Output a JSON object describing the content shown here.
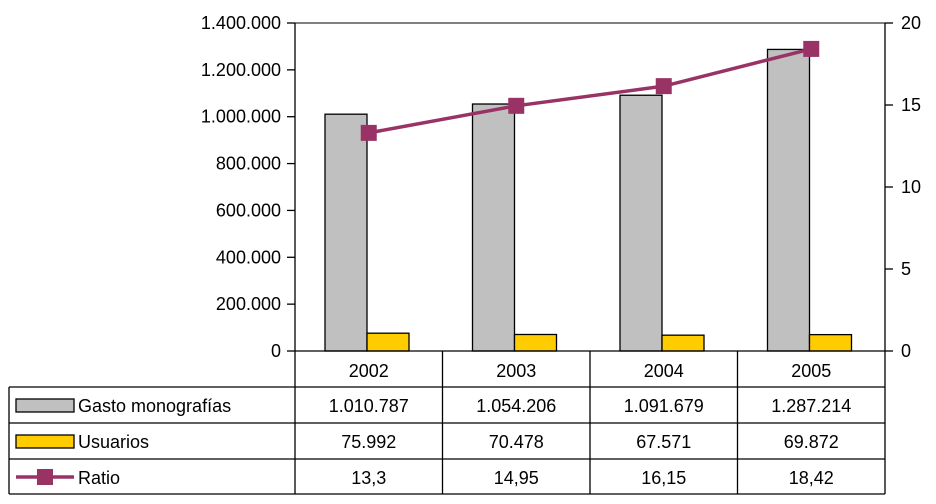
{
  "chart_data": {
    "type": "bar",
    "categories": [
      "2002",
      "2003",
      "2004",
      "2005"
    ],
    "series": [
      {
        "name": "Gasto monografías",
        "type": "bar",
        "axis": "left",
        "values": [
          1010787,
          1054206,
          1091679,
          1287214
        ],
        "labels": [
          "1.010.787",
          "1.054.206",
          "1.091.679",
          "1.287.214"
        ],
        "color": "#c0c0c0"
      },
      {
        "name": "Usuarios",
        "type": "bar",
        "axis": "left",
        "values": [
          75992,
          70478,
          67571,
          69872
        ],
        "labels": [
          "75.992",
          "70.478",
          "67.571",
          "69.872"
        ],
        "color": "#ffcc00"
      },
      {
        "name": "Ratio",
        "type": "line",
        "axis": "right",
        "values": [
          13.3,
          14.95,
          16.15,
          18.42
        ],
        "labels": [
          "13,3",
          "14,95",
          "16,15",
          "18,42"
        ],
        "color": "#993366"
      }
    ],
    "ylim_left": [
      0,
      1400000
    ],
    "yticks_left": [
      "0",
      "200.000",
      "400.000",
      "600.000",
      "800.000",
      "1.000.000",
      "1.200.000",
      "1.400.000"
    ],
    "ylim_right": [
      0,
      20
    ],
    "yticks_right": [
      "0",
      "5",
      "10",
      "15",
      "20"
    ],
    "grid": false,
    "legend": "data-table"
  }
}
